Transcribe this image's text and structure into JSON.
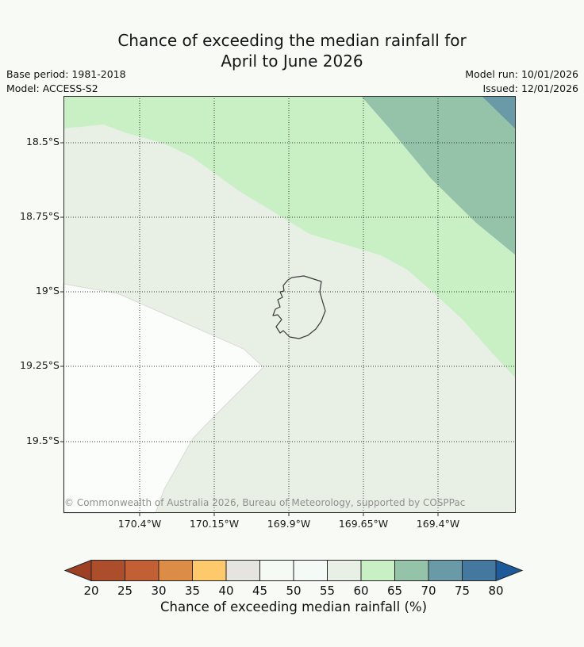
{
  "page": {
    "background": "#f8faf6"
  },
  "header": {
    "title_line1": "Chance of exceeding the median rainfall for",
    "title_line2": "April to June 2026",
    "base_period": "Base period: 1981-2018",
    "model": "Model: ACCESS-S2",
    "model_run": "Model run: 10/01/2026",
    "issued": "Issued: 12/01/2026"
  },
  "map": {
    "attribution": "© Commonwealth of Australia 2026, Bureau of Meteorology, supported by COSPPac",
    "lat_ticks": [
      "18.5°S",
      "18.75°S",
      "19°S",
      "19.25°S",
      "19.5°S"
    ],
    "lon_ticks": [
      "170.4°W",
      "170.15°W",
      "169.9°W",
      "169.65°W",
      "169.4°W"
    ],
    "gridline_style": "dotted",
    "bands": {
      "45-55": "#fbfdfa",
      "55-60": "#e8efe5",
      "60-65": "#c8f0c4",
      "65-70": "#95c3aa",
      "70-75": "#6a9aa8"
    }
  },
  "chart_data": {
    "type": "filled-contour-map",
    "title": "Chance of exceeding the median rainfall for April to June 2026",
    "lat_gridlines": [
      "18.5°S",
      "18.75°S",
      "19°S",
      "19.25°S",
      "19.5°S"
    ],
    "lon_gridlines": [
      "170.4°W",
      "170.15°W",
      "169.9°W",
      "169.65°W",
      "169.4°W"
    ],
    "approx_lat_range": [
      "18.34°S",
      "19.74°S"
    ],
    "approx_lon_range": [
      "170.66°W",
      "168.94°W"
    ],
    "contour_bands_visible": [
      {
        "value_pct": "45-55",
        "color": "#fbfdfa",
        "location": "west edge and southwest corner"
      },
      {
        "value_pct": "55-60",
        "color": "#e8efe5",
        "location": "centre of map, surrounding the island"
      },
      {
        "value_pct": "60-65",
        "color": "#c8f0c4",
        "location": "broad band across north and east"
      },
      {
        "value_pct": "65-70",
        "color": "#95c3aa",
        "location": "northeast band"
      },
      {
        "value_pct": "70-75",
        "color": "#6a9aa8",
        "location": "far northeast corner triangle"
      }
    ]
  },
  "colorbar": {
    "caption": "Chance of exceeding median rainfall (%)",
    "tick_labels": [
      "20",
      "25",
      "30",
      "35",
      "40",
      "45",
      "50",
      "55",
      "60",
      "65",
      "70",
      "75",
      "80"
    ],
    "outline_color": "#222222",
    "left_arrow_color": "#9e4023",
    "right_arrow_color": "#1d5a99",
    "segments": [
      {
        "range": "20-25",
        "color": "#ac4d2c"
      },
      {
        "range": "25-30",
        "color": "#c35f35"
      },
      {
        "range": "30-35",
        "color": "#dd8c46"
      },
      {
        "range": "35-40",
        "color": "#fdc96b"
      },
      {
        "range": "40-45",
        "color": "#e6e4e1"
      },
      {
        "range": "45-50",
        "color": "#f6faf4"
      },
      {
        "range": "50-55",
        "color": "#f4faf5"
      },
      {
        "range": "55-60",
        "color": "#e8f0e6"
      },
      {
        "range": "60-65",
        "color": "#c8f0c4"
      },
      {
        "range": "65-70",
        "color": "#95c3aa"
      },
      {
        "range": "70-75",
        "color": "#6a9aa8"
      },
      {
        "range": "75-80",
        "color": "#45789e"
      }
    ]
  }
}
